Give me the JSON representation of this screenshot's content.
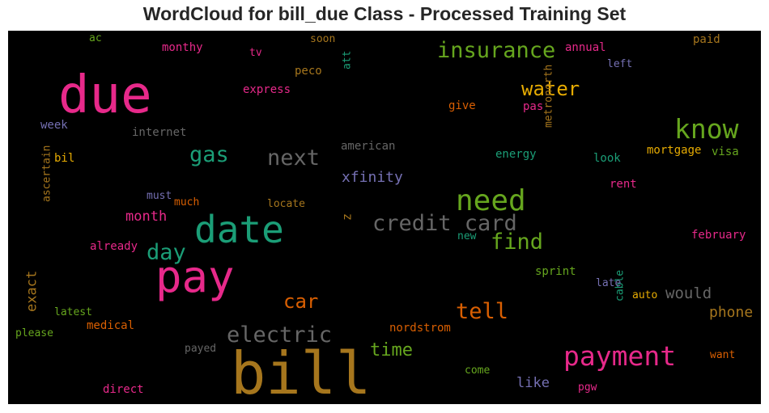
{
  "chart_data": {
    "type": "wordcloud",
    "title": "WordCloud for bill_due Class - Processed Training Set",
    "background": "#000000",
    "colors": {
      "pink": "#e7298a",
      "teal": "#1b9e77",
      "green": "#66a61e",
      "brown": "#a6761d",
      "orange": "#d95f02",
      "purple": "#7570b3",
      "gold": "#e6ab02",
      "gray": "#666666"
    },
    "words": [
      {
        "text": "bill",
        "color": "brown"
      },
      {
        "text": "due",
        "color": "pink"
      },
      {
        "text": "pay",
        "color": "pink"
      },
      {
        "text": "date",
        "color": "teal"
      },
      {
        "text": "payment",
        "color": "pink"
      },
      {
        "text": "need",
        "color": "green"
      },
      {
        "text": "credit card",
        "color": "gray"
      },
      {
        "text": "know",
        "color": "green"
      },
      {
        "text": "insurance",
        "color": "green"
      },
      {
        "text": "electric",
        "color": "gray"
      },
      {
        "text": "find",
        "color": "green"
      },
      {
        "text": "tell",
        "color": "orange"
      },
      {
        "text": "water",
        "color": "gold"
      },
      {
        "text": "next",
        "color": "gray"
      },
      {
        "text": "gas",
        "color": "teal"
      },
      {
        "text": "day",
        "color": "teal"
      },
      {
        "text": "car",
        "color": "orange"
      },
      {
        "text": "time",
        "color": "green"
      },
      {
        "text": "xfinity",
        "color": "purple"
      },
      {
        "text": "month",
        "color": "pink"
      },
      {
        "text": "exact",
        "color": "brown"
      },
      {
        "text": "would",
        "color": "gray"
      },
      {
        "text": "phone",
        "color": "brown"
      },
      {
        "text": "like",
        "color": "purple"
      },
      {
        "text": "z",
        "color": "brown"
      },
      {
        "text": "american",
        "color": "gray"
      },
      {
        "text": "internet",
        "color": "gray"
      },
      {
        "text": "week",
        "color": "purple"
      },
      {
        "text": "bil",
        "color": "gold"
      },
      {
        "text": "must",
        "color": "purple"
      },
      {
        "text": "much",
        "color": "orange"
      },
      {
        "text": "locate",
        "color": "brown"
      },
      {
        "text": "already",
        "color": "pink"
      },
      {
        "text": "ascertain",
        "color": "brown"
      },
      {
        "text": "latest",
        "color": "green"
      },
      {
        "text": "please",
        "color": "green"
      },
      {
        "text": "medical",
        "color": "orange"
      },
      {
        "text": "payed",
        "color": "gray"
      },
      {
        "text": "direct",
        "color": "pink"
      },
      {
        "text": "come",
        "color": "green"
      },
      {
        "text": "pgw",
        "color": "pink"
      },
      {
        "text": "nordstrom",
        "color": "orange"
      },
      {
        "text": "cable",
        "color": "teal"
      },
      {
        "text": "auto",
        "color": "gold"
      },
      {
        "text": "late",
        "color": "purple"
      },
      {
        "text": "want",
        "color": "orange"
      },
      {
        "text": "sprint",
        "color": "green"
      },
      {
        "text": "new",
        "color": "teal"
      },
      {
        "text": "february",
        "color": "pink"
      },
      {
        "text": "rent",
        "color": "pink"
      },
      {
        "text": "look",
        "color": "teal"
      },
      {
        "text": "mortgage",
        "color": "gold"
      },
      {
        "text": "visa",
        "color": "green"
      },
      {
        "text": "energy",
        "color": "teal"
      },
      {
        "text": "metronorth",
        "color": "brown"
      },
      {
        "text": "pas",
        "color": "pink"
      },
      {
        "text": "give",
        "color": "orange"
      },
      {
        "text": "left",
        "color": "purple"
      },
      {
        "text": "annual",
        "color": "pink"
      },
      {
        "text": "paid",
        "color": "brown"
      },
      {
        "text": "soon",
        "color": "brown"
      },
      {
        "text": "peco",
        "color": "brown"
      },
      {
        "text": "att",
        "color": "teal"
      },
      {
        "text": "express",
        "color": "pink"
      },
      {
        "text": "monthy",
        "color": "pink"
      },
      {
        "text": "tv",
        "color": "pink"
      },
      {
        "text": "ac",
        "color": "green"
      }
    ]
  }
}
